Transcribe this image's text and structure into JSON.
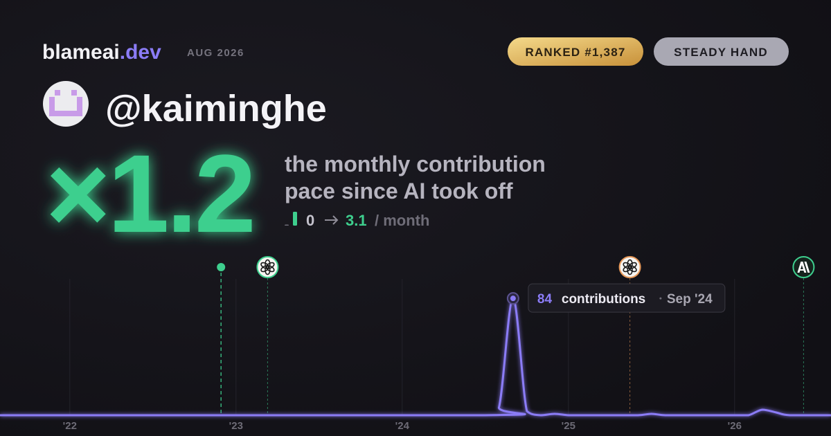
{
  "header": {
    "brand": "blameai",
    "brand_suffix": ".dev",
    "period": "AUG 2026",
    "badges": [
      "RANKED #1,387",
      "STEADY HAND"
    ]
  },
  "profile": {
    "handle": "@kaiminghe"
  },
  "headline": {
    "multiplier": "×1.2",
    "caption_lines": [
      "the monthly contribution",
      "pace since AI took off"
    ],
    "before": 0,
    "after": 3.1,
    "unit": "/ month"
  },
  "chart_data": {
    "type": "line",
    "x": [
      2021.58,
      2024.5,
      2024.583,
      2024.667,
      2024.75,
      2024.833,
      2024.917,
      2025.0,
      2025.083,
      2025.25,
      2025.417,
      2025.5,
      2025.583,
      2025.75,
      2026.0,
      2026.083,
      2026.167,
      2026.25,
      2026.333,
      2026.58
    ],
    "series": [
      {
        "name": "contributions",
        "color": "#8b7cf6",
        "values": [
          0,
          0,
          6,
          84,
          3,
          0,
          1,
          0,
          0,
          0,
          0,
          1,
          0,
          0,
          0,
          0,
          4,
          2,
          0,
          0
        ]
      }
    ],
    "xlim": [
      2021.58,
      2026.58
    ],
    "ylim": [
      0,
      100
    ],
    "xticks": [
      {
        "value": 2022,
        "label": "'22"
      },
      {
        "value": 2023,
        "label": "'23"
      },
      {
        "value": 2024,
        "label": "'24"
      },
      {
        "value": 2025,
        "label": "'25"
      },
      {
        "value": 2026,
        "label": "'26"
      }
    ],
    "grid": true,
    "events": [
      {
        "x": 2022.91,
        "kind": "dot",
        "color": "#3ecf8e"
      },
      {
        "x": 2023.19,
        "kind": "openai",
        "color": "#3ecf8e"
      },
      {
        "x": 2025.37,
        "kind": "openai",
        "color": "#e89a5a"
      },
      {
        "x": 2026.415,
        "kind": "anthropic",
        "color": "#3ecf8e"
      }
    ],
    "tooltip": {
      "date": "Sep '24"
    }
  }
}
